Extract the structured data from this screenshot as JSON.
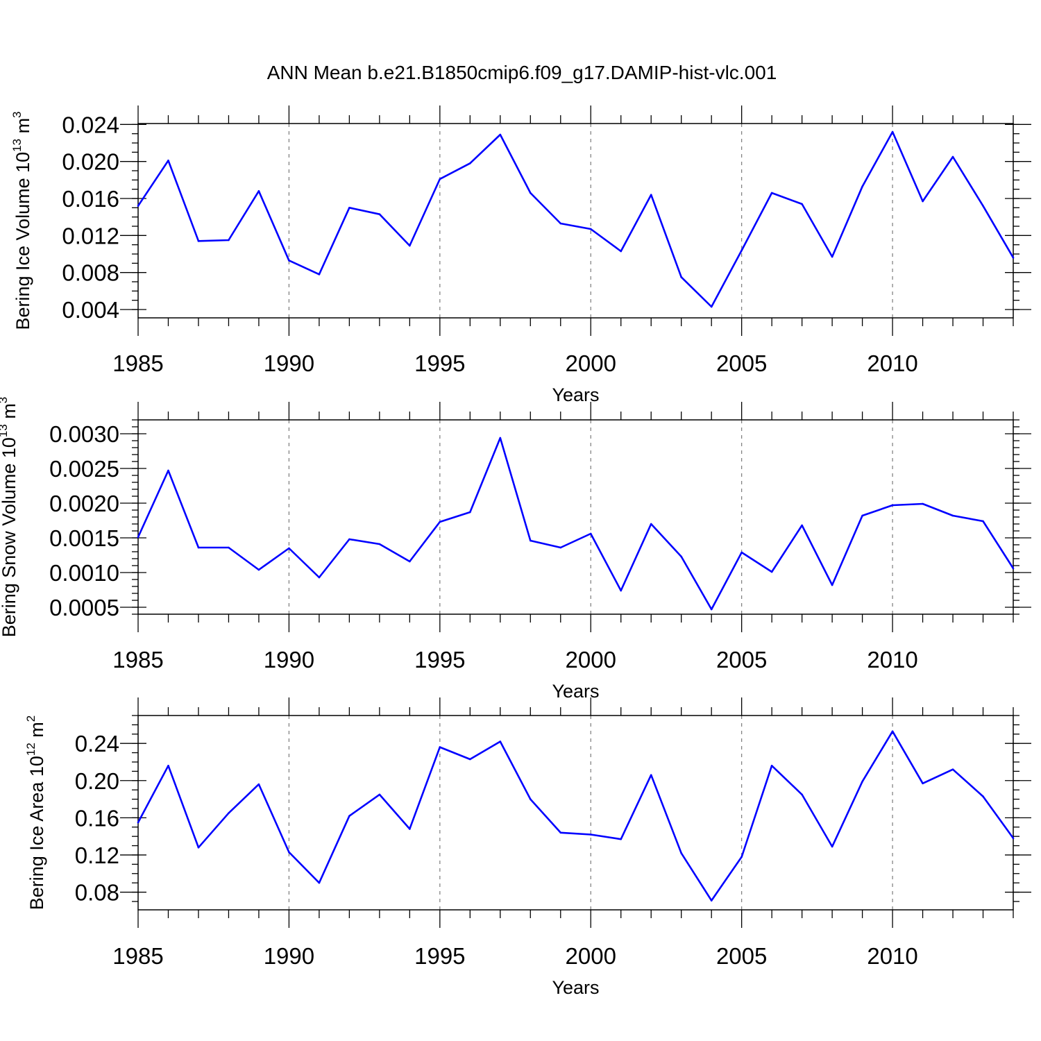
{
  "title": "ANN Mean b.e21.B1850cmip6.f09_g17.DAMIP-hist-vlc.001",
  "chart_data": [
    {
      "type": "line",
      "xlabel": "Years",
      "ylabel": {
        "text": "Bering Ice Volume 10",
        "sup": "13",
        "unit": " m",
        "unit_sup": "3"
      },
      "xlim": [
        1985,
        2014
      ],
      "ylim": [
        0.0031,
        0.0241
      ],
      "xticks": [
        1985,
        1990,
        1995,
        2000,
        2005,
        2010
      ],
      "xtick_labels": [
        "1985",
        "1990",
        "1995",
        "2000",
        "2005",
        "2010"
      ],
      "yticks": [
        0.004,
        0.008,
        0.012,
        0.016,
        0.02,
        0.024
      ],
      "ytick_labels": [
        "0.004",
        "0.008",
        "0.012",
        "0.016",
        "0.020",
        "0.024"
      ],
      "yminor_step": 0.001,
      "grid": "vertical dashed at major x ticks",
      "color": "#0000ff",
      "x": [
        1985,
        1986,
        1987,
        1988,
        1989,
        1990,
        1991,
        1992,
        1993,
        1994,
        1995,
        1996,
        1997,
        1998,
        1999,
        2000,
        2001,
        2002,
        2003,
        2004,
        2005,
        2006,
        2007,
        2008,
        2009,
        2010,
        2011,
        2012,
        2013,
        2014
      ],
      "values": [
        0.0152,
        0.0201,
        0.0114,
        0.0115,
        0.0168,
        0.0093,
        0.0078,
        0.015,
        0.0143,
        0.0109,
        0.0181,
        0.0198,
        0.0229,
        0.0166,
        0.0133,
        0.0127,
        0.0103,
        0.0164,
        0.0075,
        0.0043,
        0.0104,
        0.0166,
        0.0154,
        0.0097,
        0.0173,
        0.0232,
        0.0157,
        0.0205,
        0.0152,
        0.0096
      ]
    },
    {
      "type": "line",
      "xlabel": "Years",
      "ylabel": {
        "text": "Bering Snow Volume 10",
        "sup": "13",
        "unit": " m",
        "unit_sup": "3"
      },
      "xlim": [
        1985,
        2014
      ],
      "ylim": [
        0.0004,
        0.0032
      ],
      "xticks": [
        1985,
        1990,
        1995,
        2000,
        2005,
        2010
      ],
      "xtick_labels": [
        "1985",
        "1990",
        "1995",
        "2000",
        "2005",
        "2010"
      ],
      "yticks": [
        0.0005,
        0.001,
        0.0015,
        0.002,
        0.0025,
        0.003
      ],
      "ytick_labels": [
        "0.0005",
        "0.0010",
        "0.0015",
        "0.0020",
        "0.0025",
        "0.0030"
      ],
      "yminor_step": 0.0001,
      "grid": "vertical dashed at major x ticks",
      "color": "#0000ff",
      "x": [
        1985,
        1986,
        1987,
        1988,
        1989,
        1990,
        1991,
        1992,
        1993,
        1994,
        1995,
        1996,
        1997,
        1998,
        1999,
        2000,
        2001,
        2002,
        2003,
        2004,
        2005,
        2006,
        2007,
        2008,
        2009,
        2010,
        2011,
        2012,
        2013,
        2014
      ],
      "values": [
        0.00151,
        0.00247,
        0.00136,
        0.00136,
        0.00104,
        0.00135,
        0.00093,
        0.00148,
        0.00141,
        0.00116,
        0.00173,
        0.00187,
        0.00294,
        0.00146,
        0.00136,
        0.00156,
        0.00074,
        0.0017,
        0.00123,
        0.00047,
        0.00129,
        0.00101,
        0.00168,
        0.00082,
        0.00182,
        0.00197,
        0.00199,
        0.00182,
        0.00174,
        0.00106
      ]
    },
    {
      "type": "line",
      "xlabel": "Years",
      "ylabel": {
        "text": "Bering Ice Area 10",
        "sup": "12",
        "unit": " m",
        "unit_sup": "2"
      },
      "xlim": [
        1985,
        2014
      ],
      "ylim": [
        0.061,
        0.27
      ],
      "xticks": [
        1985,
        1990,
        1995,
        2000,
        2005,
        2010
      ],
      "xtick_labels": [
        "1985",
        "1990",
        "1995",
        "2000",
        "2005",
        "2010"
      ],
      "yticks": [
        0.08,
        0.12,
        0.16,
        0.2,
        0.24
      ],
      "ytick_labels": [
        "0.08",
        "0.12",
        "0.16",
        "0.20",
        "0.24"
      ],
      "yminor_step": 0.01,
      "grid": "vertical dashed at major x ticks",
      "color": "#0000ff",
      "x": [
        1985,
        1986,
        1987,
        1988,
        1989,
        1990,
        1991,
        1992,
        1993,
        1994,
        1995,
        1996,
        1997,
        1998,
        1999,
        2000,
        2001,
        2002,
        2003,
        2004,
        2005,
        2006,
        2007,
        2008,
        2009,
        2010,
        2011,
        2012,
        2013,
        2014
      ],
      "values": [
        0.155,
        0.216,
        0.128,
        0.165,
        0.196,
        0.123,
        0.09,
        0.162,
        0.185,
        0.148,
        0.236,
        0.223,
        0.242,
        0.18,
        0.144,
        0.142,
        0.137,
        0.206,
        0.122,
        0.071,
        0.118,
        0.216,
        0.185,
        0.129,
        0.199,
        0.253,
        0.197,
        0.212,
        0.183,
        0.138
      ]
    }
  ]
}
